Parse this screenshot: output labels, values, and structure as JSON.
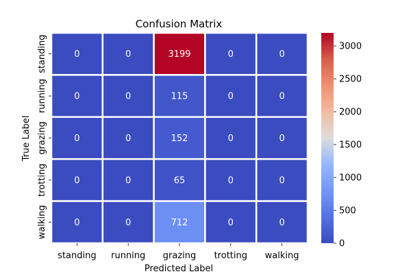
{
  "chart_data": {
    "type": "heatmap",
    "title": "Confusion Matrix",
    "xlabel": "Predicted Label",
    "ylabel": "True Label",
    "x_categories": [
      "standing",
      "running",
      "grazing",
      "trotting",
      "walking"
    ],
    "y_categories": [
      "standing",
      "running",
      "grazing",
      "trotting",
      "walking"
    ],
    "values": [
      [
        0,
        0,
        3199,
        0,
        0
      ],
      [
        0,
        0,
        115,
        0,
        0
      ],
      [
        0,
        0,
        152,
        0,
        0
      ],
      [
        0,
        0,
        65,
        0,
        0
      ],
      [
        0,
        0,
        712,
        0,
        0
      ]
    ],
    "colormap": "coolwarm",
    "colorbar": {
      "min": 0,
      "max": 3199,
      "ticks": [
        0,
        500,
        1000,
        1500,
        2000,
        2500,
        3000
      ]
    },
    "annotation_colors": {
      "dark_cell": "#ffffff",
      "light_cell": "#000000"
    }
  }
}
